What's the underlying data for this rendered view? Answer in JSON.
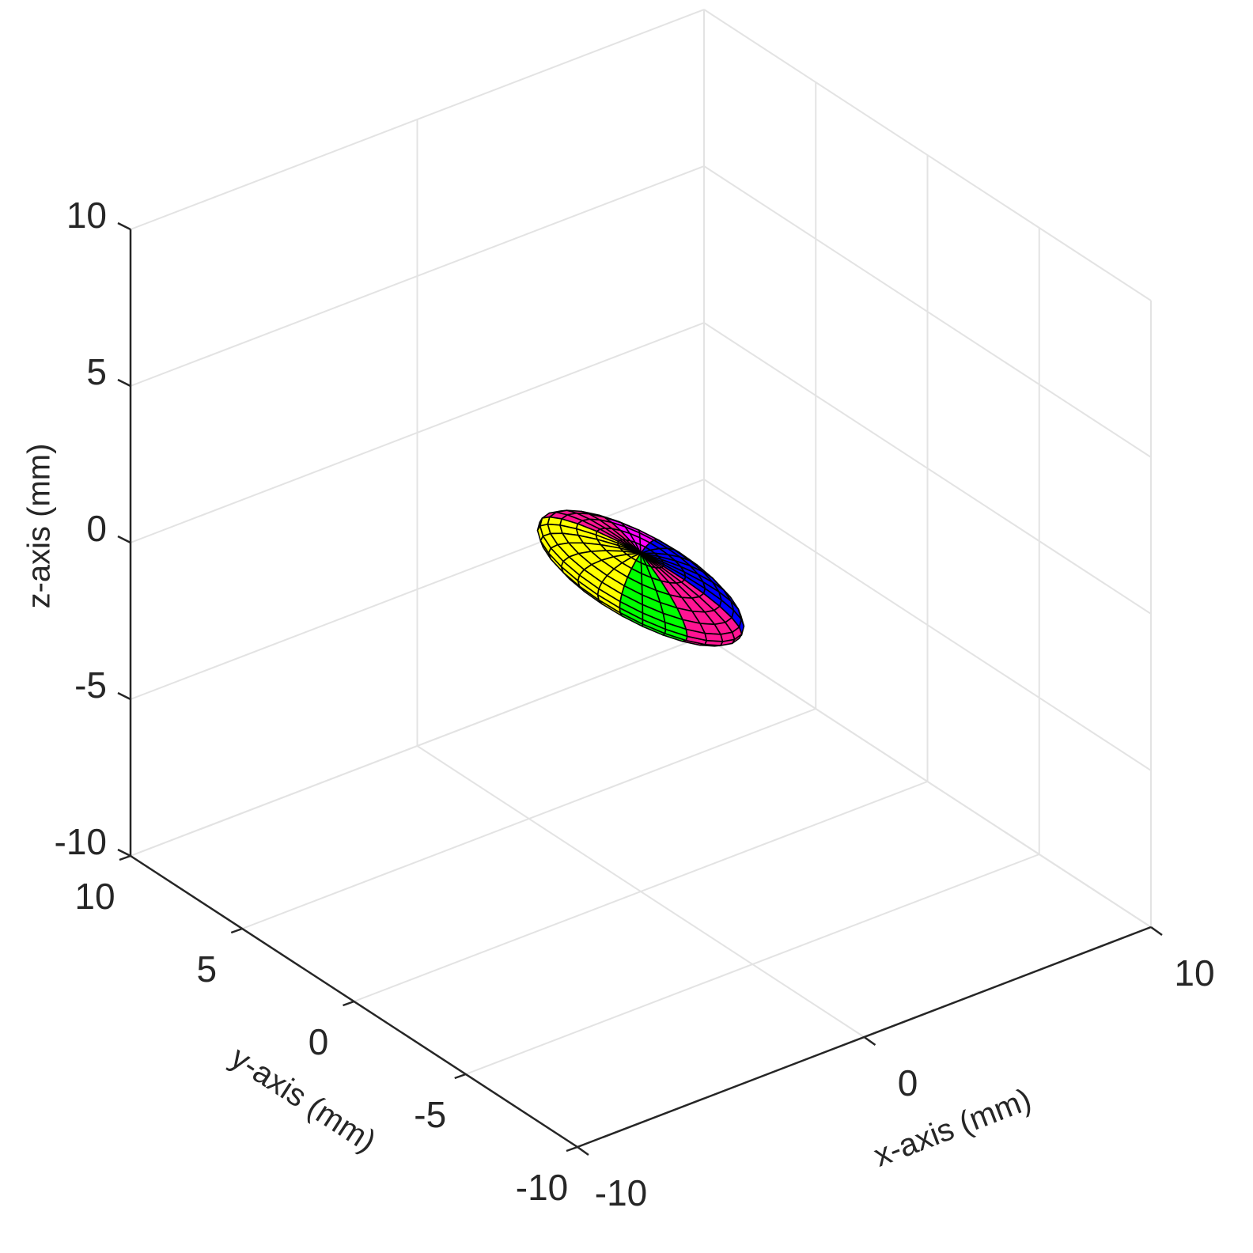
{
  "chart_data": {
    "type": "surface3d",
    "xlabel": "x-axis (mm)",
    "ylabel": "y-axis (mm)",
    "zlabel": "z-axis (mm)",
    "xlim": [
      -10,
      10
    ],
    "ylim": [
      -10,
      10
    ],
    "zlim": [
      -10,
      10
    ],
    "xticks": [
      -10,
      0,
      10
    ],
    "yticks": [
      -10,
      -5,
      0,
      5,
      10
    ],
    "zticks": [
      -10,
      -5,
      0,
      5,
      10
    ],
    "grid": true,
    "surface": {
      "shape": "ellipsoid",
      "center": [
        0,
        0,
        0
      ],
      "radii": [
        1.5,
        4.2,
        0.8
      ]
    }
  }
}
